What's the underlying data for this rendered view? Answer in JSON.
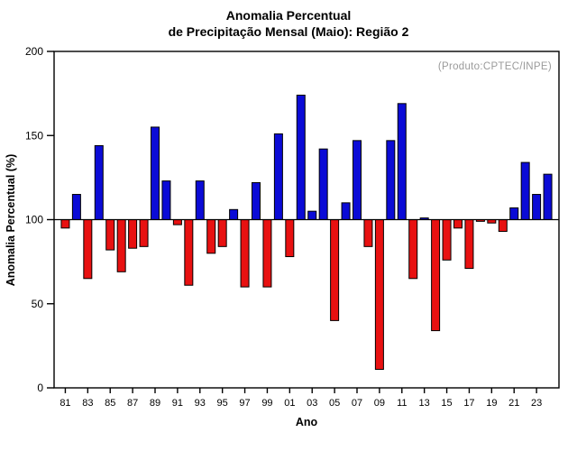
{
  "title": {
    "line1": "Anomalia Percentual",
    "line2": "de Precipitação Mensal (Maio): Região 2"
  },
  "annotation": "(Produto:CPTEC/INPE)",
  "ylabel": "Anomalia Percentual (%)",
  "xlabel": "Ano",
  "chart_data": {
    "type": "bar",
    "years": [
      1981,
      1982,
      1983,
      1984,
      1985,
      1986,
      1987,
      1988,
      1989,
      1990,
      1991,
      1992,
      1993,
      1994,
      1995,
      1996,
      1997,
      1998,
      1999,
      2000,
      2001,
      2002,
      2003,
      2004,
      2005,
      2006,
      2007,
      2008,
      2009,
      2010,
      2011,
      2012,
      2013,
      2014,
      2015,
      2016,
      2017,
      2018,
      2019,
      2020,
      2021,
      2022,
      2023,
      2024
    ],
    "values": [
      95,
      115,
      65,
      144,
      82,
      69,
      83,
      84,
      155,
      123,
      97,
      61,
      123,
      80,
      84,
      106,
      60,
      122,
      60,
      151,
      78,
      174,
      105,
      142,
      40,
      110,
      147,
      84,
      11,
      147,
      169,
      65,
      101,
      34,
      76,
      95,
      71,
      99,
      98,
      93,
      107,
      134,
      115,
      127
    ],
    "baseline": 100,
    "ylim": [
      0,
      200
    ],
    "yticks": [
      0,
      50,
      100,
      150,
      200
    ],
    "xtick_labels": [
      "81",
      "83",
      "85",
      "87",
      "89",
      "91",
      "93",
      "95",
      "97",
      "99",
      "01",
      "03",
      "05",
      "07",
      "09",
      "11",
      "13",
      "15",
      "17",
      "19",
      "21",
      "23"
    ],
    "colors": {
      "above": "#0b0bd6",
      "below": "#e81111",
      "outline": "#000000"
    },
    "grid": false,
    "legend": "none",
    "xlabel": "Ano",
    "ylabel": "Anomalia Percentual (%)",
    "title": "Anomalia Percentual de Precipitação Mensal (Maio): Região 2"
  }
}
